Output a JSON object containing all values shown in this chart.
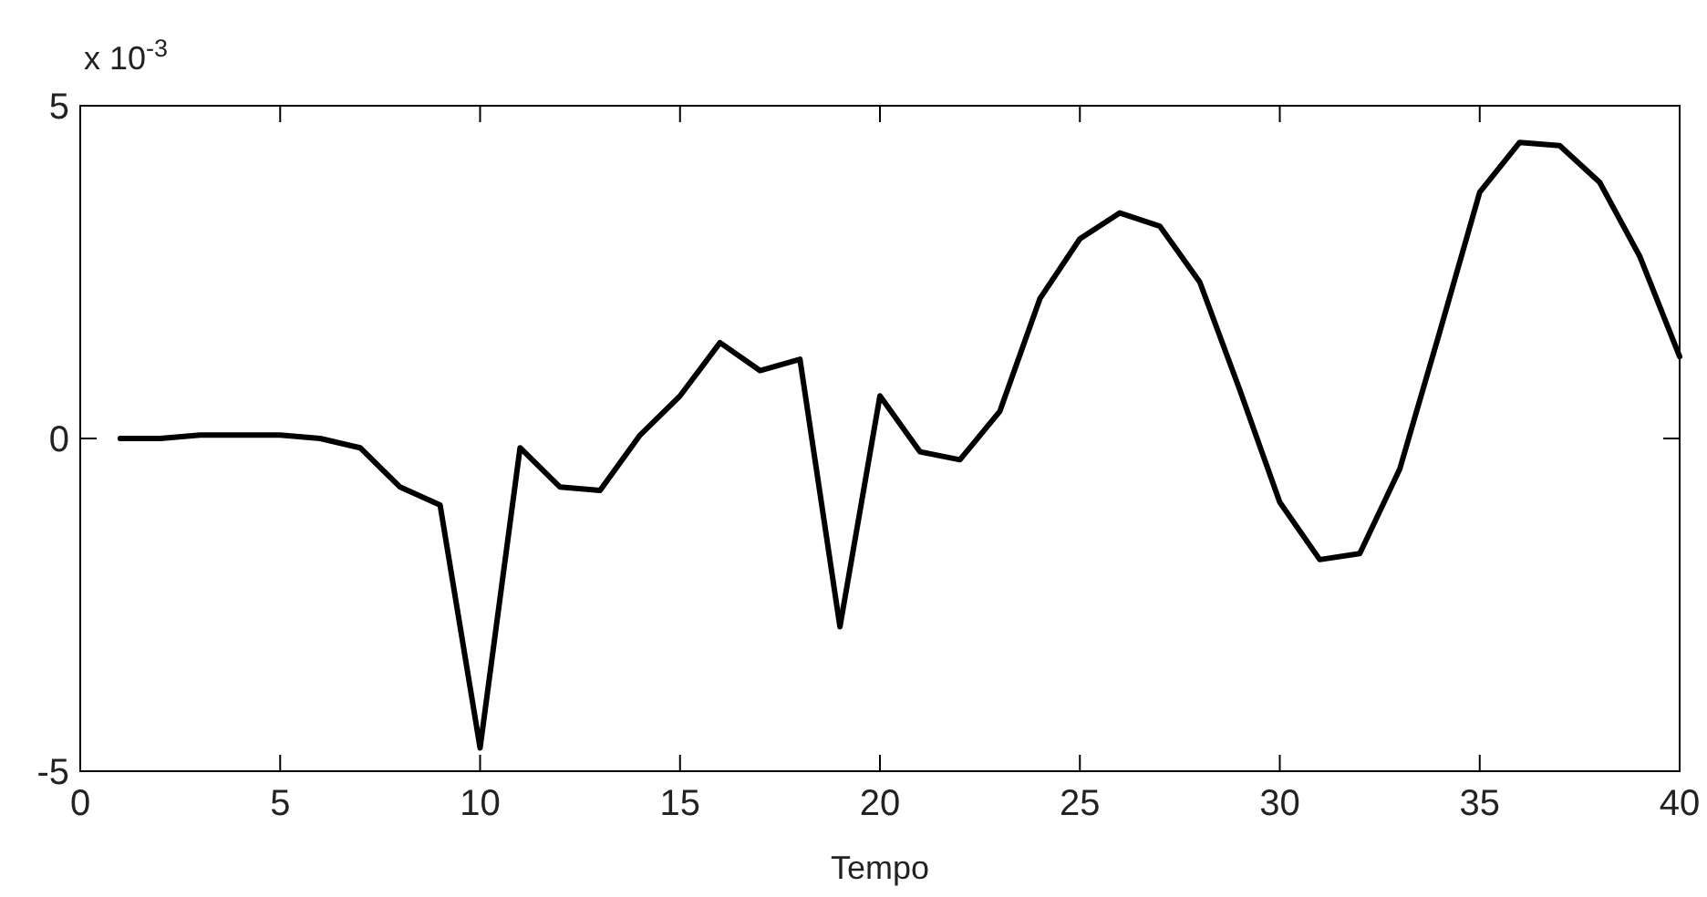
{
  "chart_data": {
    "type": "line",
    "xlabel": "Tempo",
    "annotations": [
      "x 10$^{-3}$"
    ],
    "x": [
      1,
      2,
      3,
      4,
      5,
      6,
      7,
      8,
      9,
      10,
      11,
      12,
      13,
      14,
      15,
      16,
      17,
      18,
      19,
      20,
      21,
      22,
      23,
      24,
      25,
      26,
      27,
      28,
      29,
      30,
      31,
      32,
      33,
      34,
      35,
      36,
      37,
      38,
      39,
      40
    ],
    "series": [
      {
        "color": "#000000",
        "values": [
          0,
          0,
          0.05,
          0.05,
          0.05,
          0,
          -0.14,
          -0.73,
          -1.0,
          -4.65,
          -0.14,
          -0.73,
          -0.78,
          0.05,
          0.64,
          1.44,
          1.02,
          1.19,
          -2.83,
          0.64,
          -0.2,
          -0.32,
          0.41,
          2.1,
          3.0,
          3.39,
          3.19,
          2.35,
          0.73,
          -0.96,
          -1.82,
          -1.73,
          -0.46,
          1.6,
          3.7,
          4.45,
          4.4,
          3.85,
          2.74,
          1.23
        ]
      }
    ],
    "xlim": [
      0,
      40
    ],
    "ylim": [
      -5,
      5
    ],
    "xticks": [
      0,
      5,
      10,
      15,
      20,
      25,
      30,
      35,
      40
    ],
    "yticks": [
      -5,
      0,
      5
    ]
  }
}
